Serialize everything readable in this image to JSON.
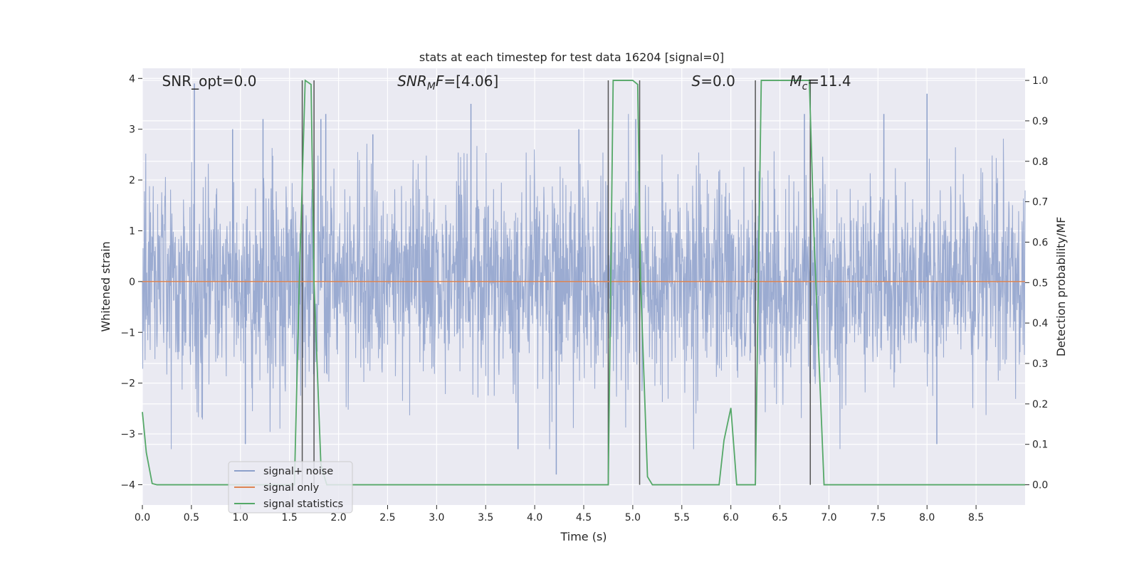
{
  "chart_data": {
    "type": "line",
    "title": "stats at each timestep for test data 16204 [signal=0]",
    "xlabel": "Time (s)",
    "ylabel": "Whitened strain",
    "y2label": "Detection probability/MF",
    "xlim": [
      0.0,
      9.0
    ],
    "ylim": [
      -4.4,
      4.2
    ],
    "y2lim": [
      -0.05,
      1.03
    ],
    "xticks": [
      "0.0",
      "0.5",
      "1.0",
      "1.5",
      "2.0",
      "2.5",
      "3.0",
      "3.5",
      "4.0",
      "4.5",
      "5.0",
      "5.5",
      "6.0",
      "6.5",
      "7.0",
      "7.5",
      "8.0",
      "8.5"
    ],
    "yticks": [
      "4",
      "3",
      "2",
      "1",
      "0",
      "−1",
      "−2",
      "−3",
      "−4"
    ],
    "y2ticks": [
      "1.0",
      "0.9",
      "0.8",
      "0.7",
      "0.6",
      "0.5",
      "0.4",
      "0.3",
      "0.2",
      "0.1",
      "0.0"
    ],
    "grid": true,
    "legend_position": "lower-left",
    "colors": {
      "background": "#eaeaf2",
      "grid": "#ffffff",
      "noise": "#8da0cb",
      "signal_only": "#dd8452",
      "statistics": "#55a868",
      "marker_lines": "#555555"
    },
    "annotations": [
      {
        "text": "SNR_opt=0.0",
        "x": 0.2
      },
      {
        "text": "SNR_MF=[4.06]",
        "x": 2.6
      },
      {
        "text": "S=0.0",
        "x": 5.6
      },
      {
        "text": "M_c=11.4",
        "x": 6.6
      }
    ],
    "noise_description": "whitened noise trace of approximate std 1.0 spanning full time range",
    "series": [
      {
        "name": "signal+ noise",
        "color": "#8da0cb",
        "sample_rate": 2048,
        "amplitude_std": 1.0,
        "spikes": [
          {
            "x": 0.53,
            "y": 3.9
          },
          {
            "x": 0.92,
            "y": 3.0
          },
          {
            "x": 1.23,
            "y": 3.2
          },
          {
            "x": 1.82,
            "y": 3.2
          },
          {
            "x": 1.87,
            "y": 3.3
          },
          {
            "x": 2.35,
            "y": 2.9
          },
          {
            "x": 3.35,
            "y": 3.5
          },
          {
            "x": 4.45,
            "y": 3.0
          },
          {
            "x": 5.03,
            "y": 3.2
          },
          {
            "x": 6.75,
            "y": 3.3
          },
          {
            "x": 7.56,
            "y": 3.3
          },
          {
            "x": 8.0,
            "y": 3.7
          },
          {
            "x": 4.22,
            "y": -3.8
          },
          {
            "x": 3.83,
            "y": -3.3
          },
          {
            "x": 1.05,
            "y": -3.2
          },
          {
            "x": 8.1,
            "y": -3.2
          }
        ]
      },
      {
        "name": "signal only",
        "color": "#dd8452",
        "x": [
          0.0,
          9.0
        ],
        "y": [
          0.0,
          0.0
        ]
      },
      {
        "name": "signal statistics",
        "color": "#55a868",
        "axis": "right",
        "x": [
          0.0,
          0.04,
          0.1,
          0.15,
          1.55,
          1.6,
          1.66,
          1.72,
          1.75,
          1.82,
          1.88,
          4.75,
          4.8,
          4.9,
          5.0,
          5.05,
          5.08,
          5.15,
          5.2,
          5.88,
          5.93,
          6.0,
          6.06,
          6.1,
          6.25,
          6.31,
          6.4,
          6.8,
          6.85,
          6.95,
          7.0,
          9.0
        ],
        "y": [
          0.18,
          0.08,
          0.003,
          0.0,
          0.0,
          0.5,
          1.0,
          0.99,
          0.5,
          0.05,
          0.0,
          0.0,
          1.0,
          1.0,
          1.0,
          0.99,
          0.5,
          0.02,
          0.0,
          0.0,
          0.11,
          0.19,
          0.0,
          0.0,
          0.0,
          1.0,
          1.0,
          1.0,
          0.6,
          0.0,
          0.0,
          0.0
        ]
      }
    ],
    "vertical_markers": [
      1.63,
      1.75,
      4.75,
      5.07,
      6.25,
      6.81
    ]
  }
}
